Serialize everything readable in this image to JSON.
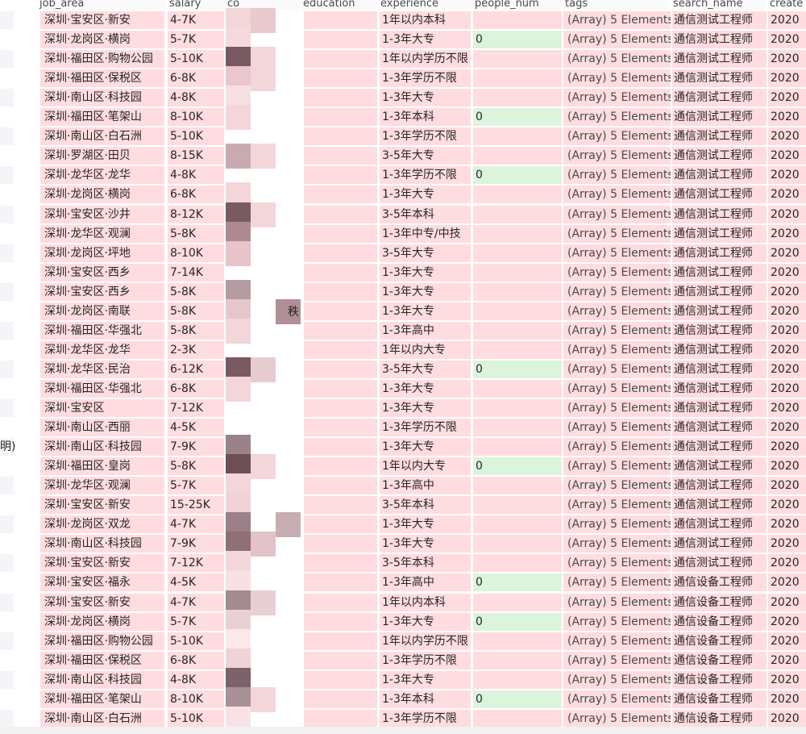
{
  "columns": {
    "job_area": "job_area",
    "salary": "salary",
    "company_fragment": "co",
    "education": "education",
    "experience": "experience",
    "people_num": "people_num",
    "tags": "tags",
    "search_name": "search_name",
    "create_fragment": "create"
  },
  "left_clipped": [
    "",
    "",
    "",
    "",
    "",
    "",
    "",
    "",
    "",
    "",
    "",
    "",
    "",
    "",
    "",
    "",
    "",
    "",
    "",
    "",
    "",
    "",
    "明)",
    "",
    "",
    "",
    "",
    "",
    "",
    "",
    "",
    "",
    "",
    "",
    "",
    "",
    "",
    "",
    ""
  ],
  "rows": [
    {
      "area": "深圳·宝安区·新安",
      "salary": "4-7K",
      "exp": "1年以内本科",
      "people": "",
      "tags": "(Array) 5 Elements",
      "search": "通信测试工程师",
      "created": "2020"
    },
    {
      "area": "深圳·龙岗区·横岗",
      "salary": "5-7K",
      "exp": "1-3年大专",
      "people": "0",
      "tags": "(Array) 5 Elements",
      "search": "通信测试工程师",
      "created": "2020"
    },
    {
      "area": "深圳·福田区·购物公园",
      "salary": "5-10K",
      "exp": "1年以内学历不限",
      "people": "",
      "tags": "(Array) 5 Elements",
      "search": "通信测试工程师",
      "created": "2020"
    },
    {
      "area": "深圳·福田区·保税区",
      "salary": "6-8K",
      "exp": "1-3年学历不限",
      "people": "",
      "tags": "(Array) 5 Elements",
      "search": "通信测试工程师",
      "created": "2020"
    },
    {
      "area": "深圳·南山区·科技园",
      "salary": "4-8K",
      "exp": "1-3年大专",
      "people": "",
      "tags": "(Array) 5 Elements",
      "search": "通信测试工程师",
      "created": "2020"
    },
    {
      "area": "深圳·福田区·笔架山",
      "salary": "8-10K",
      "exp": "1-3年本科",
      "people": "0",
      "tags": "(Array) 5 Elements",
      "search": "通信测试工程师",
      "created": "2020"
    },
    {
      "area": "深圳·南山区·白石洲",
      "salary": "5-10K",
      "exp": "1-3年学历不限",
      "people": "",
      "tags": "(Array) 5 Elements",
      "search": "通信测试工程师",
      "created": "2020"
    },
    {
      "area": "深圳·罗湖区·田贝",
      "salary": "8-15K",
      "exp": "3-5年大专",
      "people": "",
      "tags": "(Array) 5 Elements",
      "search": "通信测试工程师",
      "created": "2020"
    },
    {
      "area": "深圳·龙华区·龙华",
      "salary": "4-8K",
      "exp": "1-3年学历不限",
      "people": "0",
      "tags": "(Array) 5 Elements",
      "search": "通信测试工程师",
      "created": "2020"
    },
    {
      "area": "深圳·龙岗区·横岗",
      "salary": "6-8K",
      "exp": "1-3年大专",
      "people": "",
      "tags": "(Array) 5 Elements",
      "search": "通信测试工程师",
      "created": "2020"
    },
    {
      "area": "深圳·宝安区·沙井",
      "salary": "8-12K",
      "exp": "3-5年本科",
      "people": "",
      "tags": "(Array) 5 Elements",
      "search": "通信测试工程师",
      "created": "2020"
    },
    {
      "area": "深圳·龙华区·观澜",
      "salary": "5-8K",
      "exp": "1-3年中专/中技",
      "people": "",
      "tags": "(Array) 5 Elements",
      "search": "通信测试工程师",
      "created": "2020"
    },
    {
      "area": "深圳·龙岗区·坪地",
      "salary": "8-10K",
      "exp": "3-5年大专",
      "people": "",
      "tags": "(Array) 5 Elements",
      "search": "通信测试工程师",
      "created": "2020"
    },
    {
      "area": "深圳·宝安区·西乡",
      "salary": "7-14K",
      "exp": "1-3年大专",
      "people": "",
      "tags": "(Array) 5 Elements",
      "search": "通信测试工程师",
      "created": "2020"
    },
    {
      "area": "深圳·宝安区·西乡",
      "salary": "5-8K",
      "exp": "1-3年大专",
      "people": "",
      "tags": "(Array) 5 Elements",
      "search": "通信测试工程师",
      "created": "2020"
    },
    {
      "area": "深圳·龙岗区·南联",
      "salary": "5-8K",
      "exp": "1-3年大专",
      "people": "",
      "tags": "(Array) 5 Elements",
      "search": "通信测试工程师",
      "created": "2020"
    },
    {
      "area": "深圳·福田区·华强北",
      "salary": "5-8K",
      "exp": "1-3年高中",
      "people": "",
      "tags": "(Array) 5 Elements",
      "search": "通信测试工程师",
      "created": "2020"
    },
    {
      "area": "深圳·龙华区·龙华",
      "salary": "2-3K",
      "exp": "1年以内大专",
      "people": "",
      "tags": "(Array) 5 Elements",
      "search": "通信测试工程师",
      "created": "2020"
    },
    {
      "area": "深圳·龙华区·民治",
      "salary": "6-12K",
      "exp": "3-5年大专",
      "people": "0",
      "tags": "(Array) 5 Elements",
      "search": "通信测试工程师",
      "created": "2020"
    },
    {
      "area": "深圳·福田区·华强北",
      "salary": "6-8K",
      "exp": "1-3年大专",
      "people": "",
      "tags": "(Array) 5 Elements",
      "search": "通信测试工程师",
      "created": "2020"
    },
    {
      "area": "深圳·宝安区",
      "salary": "7-12K",
      "exp": "1-3年大专",
      "people": "",
      "tags": "(Array) 5 Elements",
      "search": "通信测试工程师",
      "created": "2020"
    },
    {
      "area": "深圳·南山区·西丽",
      "salary": "4-5K",
      "exp": "1-3年学历不限",
      "people": "",
      "tags": "(Array) 5 Elements",
      "search": "通信测试工程师",
      "created": "2020"
    },
    {
      "area": "深圳·南山区·科技园",
      "salary": "7-9K",
      "exp": "1-3年大专",
      "people": "",
      "tags": "(Array) 5 Elements",
      "search": "通信测试工程师",
      "created": "2020"
    },
    {
      "area": "深圳·福田区·皇岗",
      "salary": "5-8K",
      "exp": "1年以内大专",
      "people": "0",
      "tags": "(Array) 5 Elements",
      "search": "通信测试工程师",
      "created": "2020"
    },
    {
      "area": "深圳·龙华区·观澜",
      "salary": "5-7K",
      "exp": "1-3年高中",
      "people": "",
      "tags": "(Array) 5 Elements",
      "search": "通信测试工程师",
      "created": "2020"
    },
    {
      "area": "深圳·宝安区·新安",
      "salary": "15-25K",
      "exp": "3-5年本科",
      "people": "",
      "tags": "(Array) 5 Elements",
      "search": "通信测试工程师",
      "created": "2020"
    },
    {
      "area": "深圳·龙岗区·双龙",
      "salary": "4-7K",
      "exp": "1-3年大专",
      "people": "",
      "tags": "(Array) 5 Elements",
      "search": "通信测试工程师",
      "created": "2020"
    },
    {
      "area": "深圳·南山区·科技园",
      "salary": "7-9K",
      "exp": "1-3年大专",
      "people": "",
      "tags": "(Array) 5 Elements",
      "search": "通信测试工程师",
      "created": "2020"
    },
    {
      "area": "深圳·宝安区·新安",
      "salary": "7-12K",
      "exp": "3-5年本科",
      "people": "",
      "tags": "(Array) 5 Elements",
      "search": "通信测试工程师",
      "created": "2020"
    },
    {
      "area": "深圳·宝安区·福永",
      "salary": "4-5K",
      "exp": "1-3年高中",
      "people": "0",
      "tags": "(Array) 5 Elements",
      "search": "通信设备工程师",
      "created": "2020"
    },
    {
      "area": "深圳·宝安区·新安",
      "salary": "4-7K",
      "exp": "1年以内本科",
      "people": "",
      "tags": "(Array) 5 Elements",
      "search": "通信设备工程师",
      "created": "2020"
    },
    {
      "area": "深圳·龙岗区·横岗",
      "salary": "5-7K",
      "exp": "1-3年大专",
      "people": "0",
      "tags": "(Array) 5 Elements",
      "search": "通信设备工程师",
      "created": "2020"
    },
    {
      "area": "深圳·福田区·购物公园",
      "salary": "5-10K",
      "exp": "1年以内学历不限",
      "people": "",
      "tags": "(Array) 5 Elements",
      "search": "通信设备工程师",
      "created": "2020"
    },
    {
      "area": "深圳·福田区·保税区",
      "salary": "6-8K",
      "exp": "1-3年学历不限",
      "people": "",
      "tags": "(Array) 5 Elements",
      "search": "通信设备工程师",
      "created": "2020"
    },
    {
      "area": "深圳·南山区·科技园",
      "salary": "4-8K",
      "exp": "1-3年大专",
      "people": "",
      "tags": "(Array) 5 Elements",
      "search": "通信设备工程师",
      "created": "2020"
    },
    {
      "area": "深圳·福田区·笔架山",
      "salary": "8-10K",
      "exp": "1-3年本科",
      "people": "0",
      "tags": "(Array) 5 Elements",
      "search": "通信设备工程师",
      "created": "2020"
    },
    {
      "area": "深圳·南山区·白石洲",
      "salary": "5-10K",
      "exp": "1-3年学历不限",
      "people": "",
      "tags": "(Array) 5 Elements",
      "search": "通信设备工程师",
      "created": "2020"
    }
  ],
  "truncated_glyph": "秩",
  "colors": {
    "cell_pink": "#ffdce0",
    "cell_green": "#ddf4dc",
    "header_text": "#4a4a4a",
    "redacted_dark": "#7a5a62",
    "redacted_light": "#f3d6da"
  }
}
